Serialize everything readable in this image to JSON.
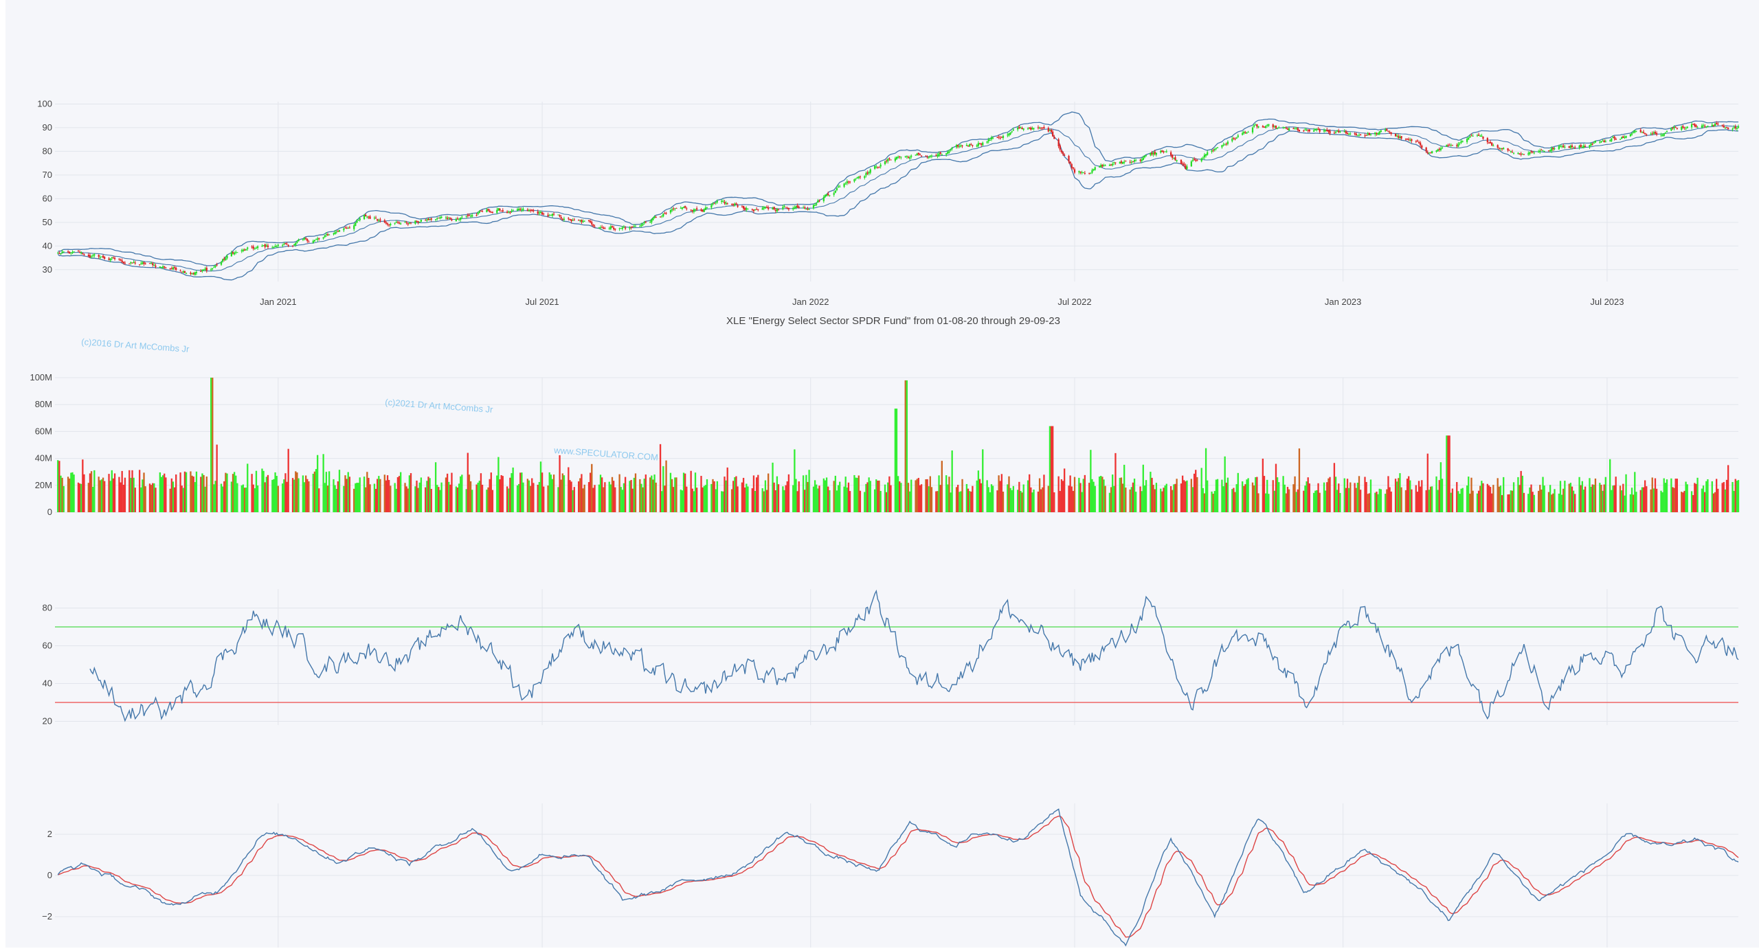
{
  "chart_data": [
    {
      "type": "candlestick",
      "panel": "price",
      "title": "XLE \"Energy Select Sector SPDR Fund\" from 01-08-20 through 29-09-23",
      "x_range": [
        "2020-08-01",
        "2023-09-29"
      ],
      "x_ticks": [
        "Jan 2021",
        "Jul 2021",
        "Jan 2022",
        "Jul 2022",
        "Jan 2023",
        "Jul 2023"
      ],
      "y_ticks": [
        "30",
        "40",
        "50",
        "60",
        "70",
        "80",
        "90",
        "100"
      ],
      "ylim": [
        25,
        101
      ],
      "overlay": "bollinger-bands",
      "series_anchor_close": [
        [
          "2020-08-01",
          37
        ],
        [
          "2020-09-01",
          35
        ],
        [
          "2020-10-01",
          32
        ],
        [
          "2020-11-01",
          30
        ],
        [
          "2020-11-15",
          30
        ],
        [
          "2020-12-01",
          37
        ],
        [
          "2021-01-01",
          40
        ],
        [
          "2021-02-01",
          43
        ],
        [
          "2021-03-01",
          52
        ],
        [
          "2021-04-01",
          50
        ],
        [
          "2021-05-01",
          52
        ],
        [
          "2021-06-01",
          55
        ],
        [
          "2021-07-01",
          53
        ],
        [
          "2021-08-01",
          49
        ],
        [
          "2021-09-01",
          48
        ],
        [
          "2021-10-01",
          55
        ],
        [
          "2021-11-01",
          57
        ],
        [
          "2021-12-01",
          55
        ],
        [
          "2022-01-01",
          58
        ],
        [
          "2022-02-01",
          70
        ],
        [
          "2022-03-01",
          78
        ],
        [
          "2022-04-01",
          78
        ],
        [
          "2022-05-01",
          85
        ],
        [
          "2022-06-01",
          90
        ],
        [
          "2022-06-15",
          88
        ],
        [
          "2022-07-01",
          72
        ],
        [
          "2022-08-01",
          75
        ],
        [
          "2022-09-01",
          80
        ],
        [
          "2022-09-15",
          72
        ],
        [
          "2022-10-01",
          80
        ],
        [
          "2022-11-01",
          90
        ],
        [
          "2022-12-01",
          88
        ],
        [
          "2023-01-01",
          87
        ],
        [
          "2023-02-01",
          88
        ],
        [
          "2023-03-01",
          80
        ],
        [
          "2023-04-01",
          85
        ],
        [
          "2023-05-01",
          80
        ],
        [
          "2023-06-01",
          82
        ],
        [
          "2023-07-01",
          85
        ],
        [
          "2023-08-01",
          89
        ],
        [
          "2023-09-01",
          92
        ],
        [
          "2023-09-29",
          90
        ]
      ]
    },
    {
      "type": "bar",
      "panel": "volume",
      "y_ticks": [
        "0",
        "20M",
        "40M",
        "60M",
        "80M",
        "100M"
      ],
      "ylim": [
        0,
        100000000
      ],
      "colors": {
        "up": "#33ee33",
        "down": "#ee3333",
        "flat": "#cc6622"
      },
      "peaks": [
        [
          "2020-11-16",
          100000000
        ],
        [
          "2022-03-07",
          98000000
        ],
        [
          "2022-02-28",
          77000000
        ],
        [
          "2022-06-15",
          64000000
        ],
        [
          "2023-03-14",
          57000000
        ]
      ]
    },
    {
      "type": "line",
      "panel": "rsi",
      "y_ticks": [
        "20",
        "40",
        "60",
        "80"
      ],
      "ylim": [
        18,
        90
      ],
      "reference_lines": [
        {
          "value": 70,
          "color": "#66dd66"
        },
        {
          "value": 30,
          "color": "#ee6666"
        }
      ],
      "series_anchor": [
        [
          "2020-08-25",
          52
        ],
        [
          "2020-09-15",
          25
        ],
        [
          "2020-10-15",
          25
        ],
        [
          "2020-11-15",
          45
        ],
        [
          "2020-12-15",
          75
        ],
        [
          "2021-01-15",
          62
        ],
        [
          "2021-02-01",
          48
        ],
        [
          "2021-03-01",
          58
        ],
        [
          "2021-04-01",
          52
        ],
        [
          "2021-05-01",
          75
        ],
        [
          "2021-06-01",
          55
        ],
        [
          "2021-06-20",
          32
        ],
        [
          "2021-07-20",
          68
        ],
        [
          "2021-08-20",
          58
        ],
        [
          "2021-09-20",
          45
        ],
        [
          "2021-10-15",
          32
        ],
        [
          "2021-11-15",
          50
        ],
        [
          "2021-12-15",
          42
        ],
        [
          "2022-01-15",
          60
        ],
        [
          "2022-02-15",
          85
        ],
        [
          "2022-03-15",
          40
        ],
        [
          "2022-04-15",
          45
        ],
        [
          "2022-05-15",
          80
        ],
        [
          "2022-06-15",
          60
        ],
        [
          "2022-07-01",
          50
        ],
        [
          "2022-08-01",
          62
        ],
        [
          "2022-08-20",
          82
        ],
        [
          "2022-09-20",
          25
        ],
        [
          "2022-10-15",
          65
        ],
        [
          "2022-11-10",
          60
        ],
        [
          "2022-12-05",
          30
        ],
        [
          "2023-01-01",
          68
        ],
        [
          "2023-01-20",
          78
        ],
        [
          "2023-02-15",
          35
        ],
        [
          "2023-03-20",
          60
        ],
        [
          "2023-04-10",
          25
        ],
        [
          "2023-05-05",
          65
        ],
        [
          "2023-05-20",
          30
        ],
        [
          "2023-06-20",
          60
        ],
        [
          "2023-07-10",
          45
        ],
        [
          "2023-08-05",
          80
        ],
        [
          "2023-08-25",
          55
        ],
        [
          "2023-09-15",
          65
        ],
        [
          "2023-09-29",
          55
        ]
      ]
    },
    {
      "type": "line",
      "panel": "macd",
      "y_ticks": [
        "−2",
        "0",
        "2"
      ],
      "ylim": [
        -3.5,
        3.5
      ],
      "series": [
        {
          "color": "#4477aa",
          "role": "macd"
        },
        {
          "color": "#dd4444",
          "role": "signal"
        }
      ],
      "series_anchor": [
        [
          "2020-08-01",
          0
        ],
        [
          "2020-08-20",
          0.5
        ],
        [
          "2020-09-20",
          -0.5
        ],
        [
          "2020-10-20",
          -1.5
        ],
        [
          "2020-11-20",
          -0.8
        ],
        [
          "2020-12-20",
          2.1
        ],
        [
          "2021-01-15",
          1.8
        ],
        [
          "2021-02-10",
          0.8
        ],
        [
          "2021-03-10",
          1.5
        ],
        [
          "2021-04-01",
          0.6
        ],
        [
          "2021-05-15",
          2.4
        ],
        [
          "2021-06-10",
          0.2
        ],
        [
          "2021-07-01",
          1.2
        ],
        [
          "2021-08-01",
          0.8
        ],
        [
          "2021-08-25",
          -1.3
        ],
        [
          "2021-10-01",
          -0.5
        ],
        [
          "2021-11-15",
          0.4
        ],
        [
          "2021-12-15",
          2.1
        ],
        [
          "2022-01-15",
          1.0
        ],
        [
          "2022-02-15",
          0.1
        ],
        [
          "2022-03-10",
          2.4
        ],
        [
          "2022-04-10",
          1.6
        ],
        [
          "2022-05-01",
          2.1
        ],
        [
          "2022-05-20",
          1.8
        ],
        [
          "2022-06-20",
          3.2
        ],
        [
          "2022-07-05",
          -0.9
        ],
        [
          "2022-08-05",
          -3.3
        ],
        [
          "2022-09-05",
          1.8
        ],
        [
          "2022-10-05",
          -1.9
        ],
        [
          "2022-11-05",
          2.9
        ],
        [
          "2022-12-05",
          -0.9
        ],
        [
          "2023-01-15",
          1.2
        ],
        [
          "2023-02-15",
          -0.2
        ],
        [
          "2023-03-15",
          -2.2
        ],
        [
          "2023-04-15",
          1.1
        ],
        [
          "2023-05-15",
          -1.2
        ],
        [
          "2023-06-15",
          0.2
        ],
        [
          "2023-07-15",
          1.8
        ],
        [
          "2023-08-15",
          1.3
        ],
        [
          "2023-09-01",
          1.6
        ],
        [
          "2023-09-29",
          0.7
        ]
      ]
    }
  ],
  "watermarks": [
    "(c)2016 Dr Art McCombs Jr",
    "(c)2021 Dr Art McCombs Jr",
    "www.SPECULATOR.COM"
  ]
}
